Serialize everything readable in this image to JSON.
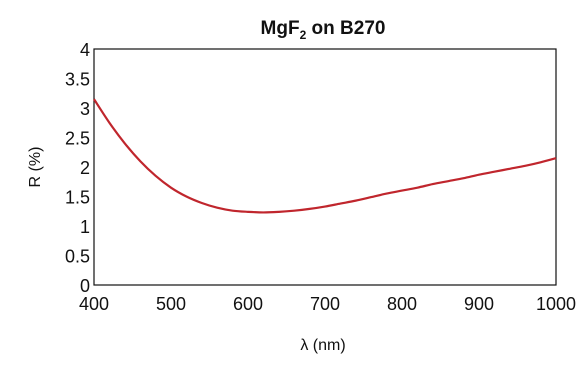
{
  "chart_data": {
    "type": "line",
    "title_main": "MgF",
    "title_sub": "2",
    "title_rest": " on B270",
    "xlabel": "λ (nm)",
    "ylabel": "R (%)",
    "xlim": [
      400,
      1000
    ],
    "ylim": [
      0,
      4
    ],
    "xticks": [
      "400",
      "500",
      "600",
      "700",
      "800",
      "900",
      "1000"
    ],
    "yticks": [
      "0",
      "0.5",
      "1",
      "1.5",
      "2",
      "2.5",
      "3",
      "3.5",
      "4"
    ],
    "grid": false,
    "series_color": "#c0262d",
    "series": [
      {
        "x": [
          400,
          420,
          440,
          460,
          480,
          500,
          520,
          540,
          560,
          580,
          600,
          620,
          640,
          660,
          680,
          700,
          720,
          740,
          760,
          780,
          800,
          820,
          840,
          860,
          880,
          900,
          920,
          940,
          960,
          980,
          1000
        ],
        "values": [
          3.15,
          2.75,
          2.4,
          2.1,
          1.85,
          1.65,
          1.5,
          1.39,
          1.31,
          1.26,
          1.24,
          1.23,
          1.24,
          1.26,
          1.29,
          1.33,
          1.38,
          1.43,
          1.49,
          1.55,
          1.6,
          1.65,
          1.71,
          1.76,
          1.81,
          1.87,
          1.92,
          1.97,
          2.02,
          2.08,
          2.15
        ]
      }
    ]
  }
}
